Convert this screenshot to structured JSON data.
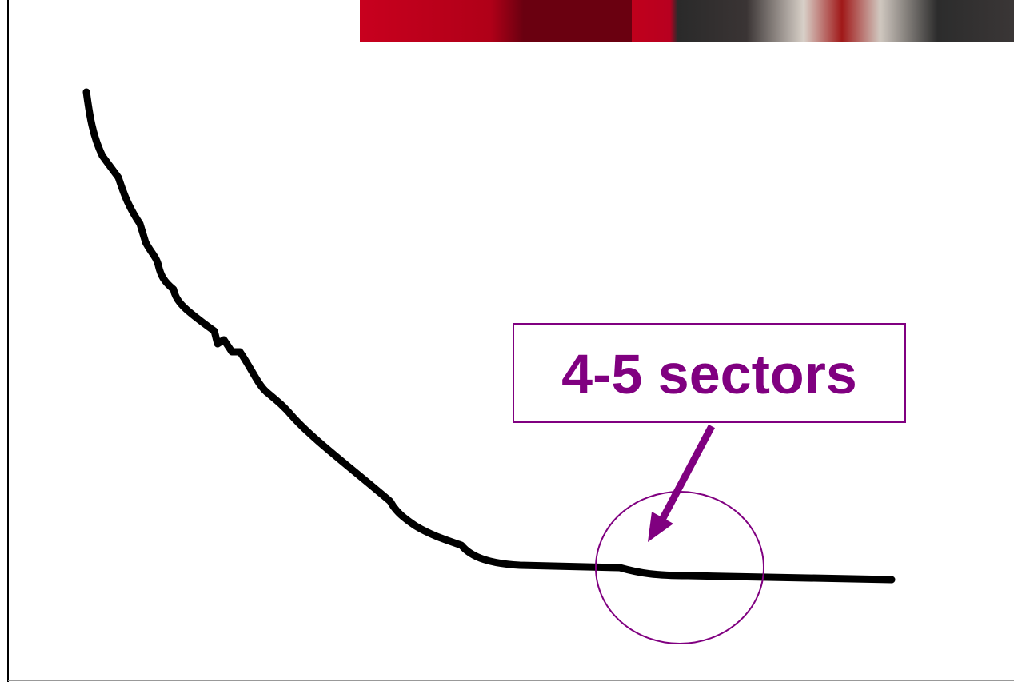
{
  "annotation": {
    "label": "4-5 sectors"
  }
}
